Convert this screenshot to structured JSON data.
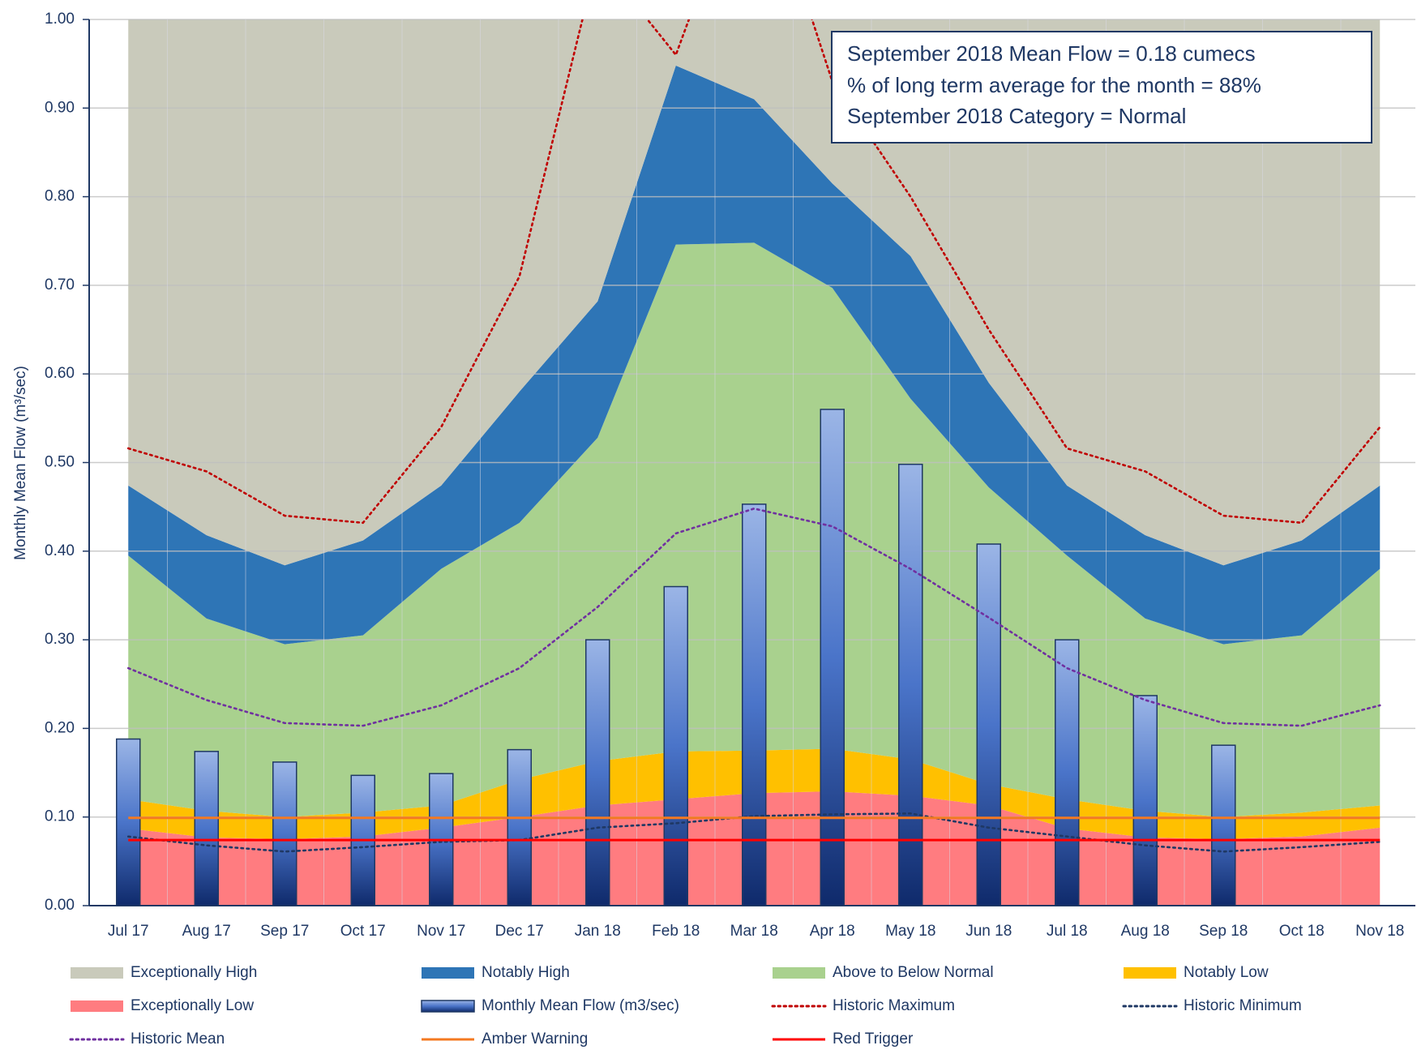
{
  "chart_data": {
    "type": "area",
    "y_label": "Monthly Mean Flow (m³/sec)",
    "annotation": [
      "September 2018 Mean Flow = 0.18 cumecs",
      "% of long term average for the month = 88%",
      "September 2018 Category = Normal"
    ],
    "categories": [
      "Jul 17",
      "Aug 17",
      "Sep 17",
      "Oct 17",
      "Nov 17",
      "Dec 17",
      "Jan 18",
      "Feb 18",
      "Mar 18",
      "Apr 18",
      "May 18",
      "Jun 18",
      "Jul 18",
      "Aug 18",
      "Sep 18",
      "Oct 18",
      "Nov 18"
    ],
    "ylim": [
      0,
      1
    ],
    "yticks": [
      {
        "value": 0,
        "label": "0.00"
      },
      {
        "value": 0.1,
        "label": "0.10"
      },
      {
        "value": 0.2,
        "label": "0.20"
      },
      {
        "value": 0.3,
        "label": "0.30"
      },
      {
        "value": 0.4,
        "label": "0.40"
      },
      {
        "value": 0.5,
        "label": "0.50"
      },
      {
        "value": 0.6,
        "label": "0.60"
      },
      {
        "value": 0.7,
        "label": "0.70"
      },
      {
        "value": 0.8,
        "label": "0.80"
      },
      {
        "value": 0.9,
        "label": "0.90"
      },
      {
        "value": 1,
        "label": "1.00"
      }
    ],
    "grid": true,
    "legend": "bottom",
    "series": [
      {
        "name": "Exceptionally High",
        "type": "area",
        "color": "#c9cabb",
        "values": [
          0.526,
          0.582,
          0.616,
          0.588,
          0.526,
          0.42,
          0.318,
          0.052,
          0.09,
          0.185,
          0.267,
          0.41,
          0.526,
          0.582,
          0.616,
          0.588,
          0.526
        ]
      },
      {
        "name": "Notably High",
        "type": "area",
        "color": "#2e75b6",
        "values": [
          0.079,
          0.094,
          0.089,
          0.107,
          0.094,
          0.148,
          0.154,
          0.202,
          0.162,
          0.118,
          0.161,
          0.118,
          0.079,
          0.094,
          0.089,
          0.107,
          0.094
        ]
      },
      {
        "name": "Above to Below Normal",
        "type": "area",
        "color": "#a9d18e",
        "values": [
          0.275,
          0.217,
          0.195,
          0.2,
          0.267,
          0.29,
          0.365,
          0.572,
          0.573,
          0.52,
          0.407,
          0.335,
          0.275,
          0.217,
          0.195,
          0.2,
          0.267
        ]
      },
      {
        "name": "Notably Low",
        "type": "area",
        "color": "#ffc000",
        "values": [
          0.033,
          0.03,
          0.025,
          0.027,
          0.025,
          0.042,
          0.05,
          0.054,
          0.048,
          0.048,
          0.041,
          0.024,
          0.033,
          0.03,
          0.025,
          0.027,
          0.025
        ]
      },
      {
        "name": "Exceptionally Low",
        "type": "area",
        "color": "#ff7c80",
        "values": [
          0.087,
          0.077,
          0.075,
          0.078,
          0.088,
          0.1,
          0.113,
          0.12,
          0.127,
          0.129,
          0.124,
          0.113,
          0.087,
          0.077,
          0.075,
          0.078,
          0.088
        ]
      },
      {
        "name": "Monthly Mean Flow (m3/sec)",
        "type": "bar",
        "color": "#1f3864",
        "values": [
          0.188,
          0.174,
          0.162,
          0.147,
          0.149,
          0.176,
          0.3,
          0.36,
          0.453,
          0.56,
          0.498,
          0.408,
          0.3,
          0.237,
          0.181,
          null,
          null
        ]
      },
      {
        "name": "Historic Maximum",
        "type": "line",
        "dash": "dotted",
        "color": "#c00000",
        "values": [
          0.516,
          0.49,
          0.44,
          0.432,
          0.54,
          0.71,
          1.07,
          0.96,
          1.2,
          0.93,
          0.8,
          0.65,
          0.516,
          0.49,
          0.44,
          0.432,
          0.54
        ]
      },
      {
        "name": "Historic Minimum",
        "type": "line",
        "dash": "dotted",
        "color": "#1f3864",
        "values": [
          0.078,
          0.068,
          0.061,
          0.066,
          0.072,
          0.074,
          0.088,
          0.093,
          0.101,
          0.103,
          0.104,
          0.088,
          0.078,
          0.068,
          0.061,
          0.066,
          0.072
        ]
      },
      {
        "name": "Historic Mean",
        "type": "line",
        "dash": "dotted",
        "color": "#7030a0",
        "values": [
          0.268,
          0.232,
          0.206,
          0.203,
          0.226,
          0.268,
          0.337,
          0.42,
          0.448,
          0.428,
          0.38,
          0.325,
          0.268,
          0.232,
          0.206,
          0.203,
          0.226
        ]
      },
      {
        "name": "Amber Warning",
        "type": "line",
        "dash": "solid",
        "color": "#f47920",
        "values": [
          0.099,
          0.099,
          0.099,
          0.099,
          0.099,
          0.099,
          0.099,
          0.099,
          0.099,
          0.099,
          0.099,
          0.099,
          0.099,
          0.099,
          0.099,
          0.099,
          0.099
        ]
      },
      {
        "name": "Red Trigger",
        "type": "line",
        "dash": "solid",
        "color": "#ff0000",
        "values": [
          0.074,
          0.074,
          0.074,
          0.074,
          0.074,
          0.074,
          0.074,
          0.074,
          0.074,
          0.074,
          0.074,
          0.074,
          0.074,
          0.074,
          0.074,
          0.074,
          0.074
        ]
      }
    ]
  }
}
